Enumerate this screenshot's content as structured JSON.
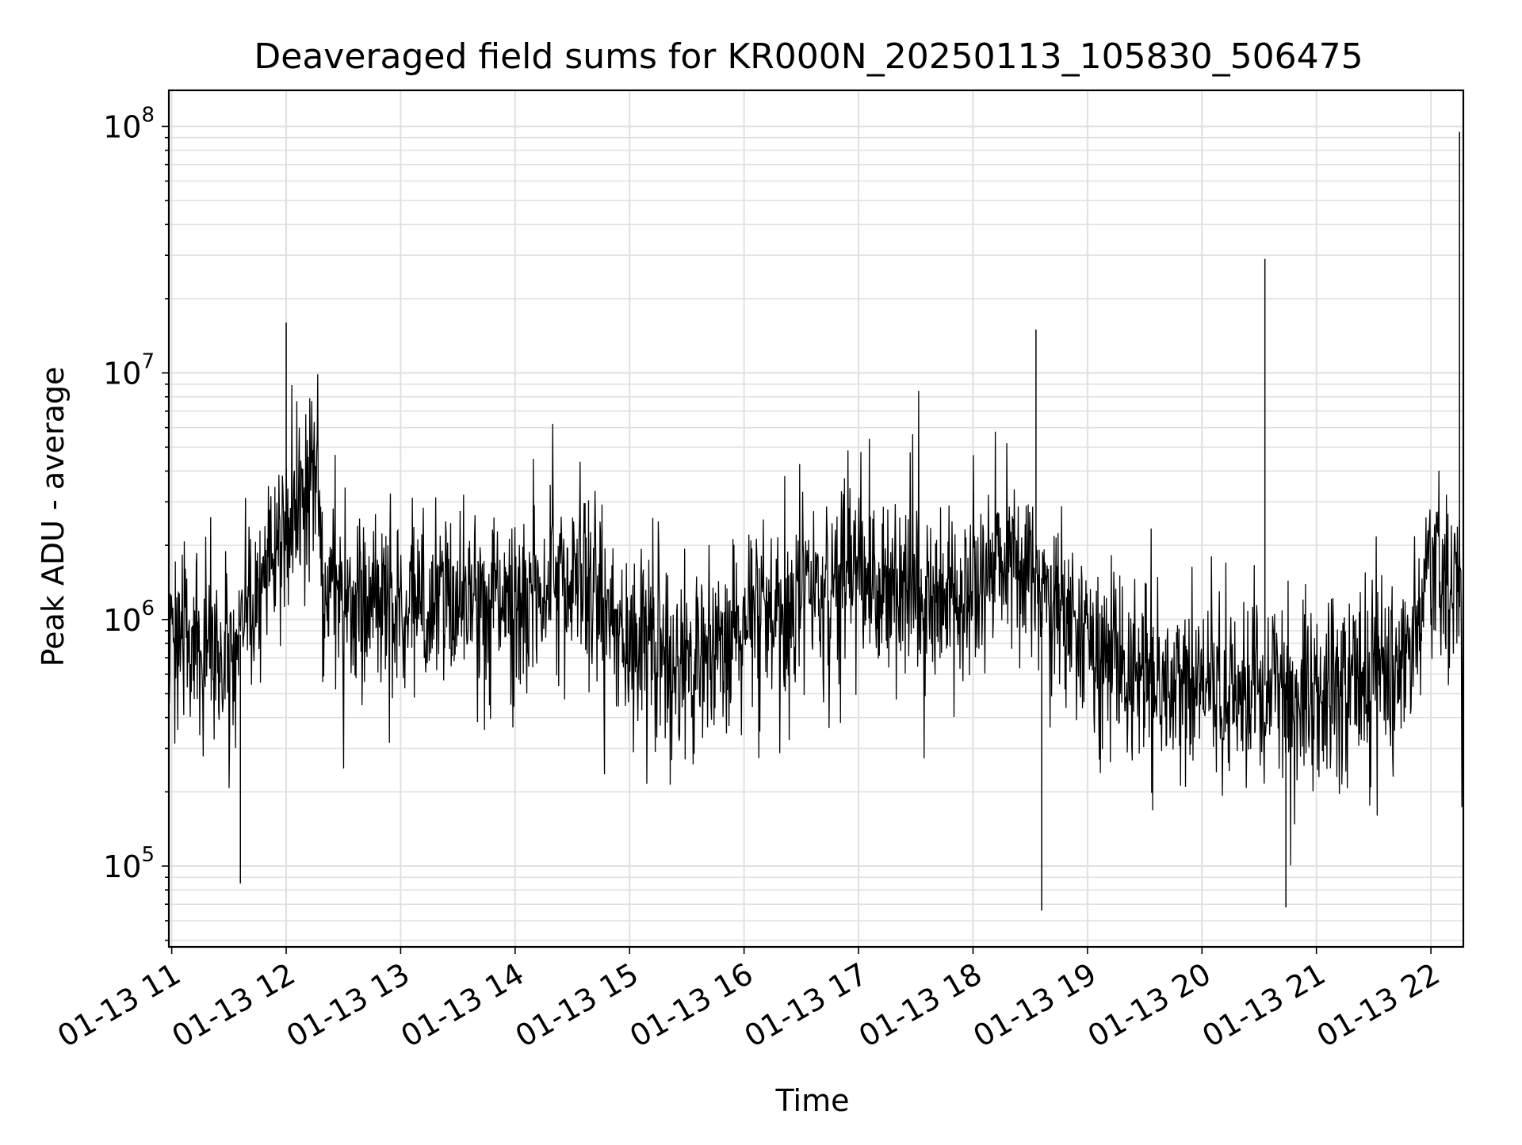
{
  "chart_data": {
    "type": "line",
    "title": "Deaveraged field sums for KR000N_20250113_105830_506475",
    "xlabel": "Time",
    "ylabel": "Peak ADU - average",
    "yscale": "log",
    "ylim": [
      47000,
      140000000
    ],
    "xlim": [
      "2025-01-13 10:58:30",
      "2025-01-13 22:17:00"
    ],
    "grid": true,
    "line_color": "#000000",
    "grid_color": "#e0e0e0",
    "x_ticks": [
      {
        "time": "2025-01-13 11:00",
        "label": "01-13 11"
      },
      {
        "time": "2025-01-13 12:00",
        "label": "01-13 12"
      },
      {
        "time": "2025-01-13 13:00",
        "label": "01-13 13"
      },
      {
        "time": "2025-01-13 14:00",
        "label": "01-13 14"
      },
      {
        "time": "2025-01-13 15:00",
        "label": "01-13 15"
      },
      {
        "time": "2025-01-13 16:00",
        "label": "01-13 16"
      },
      {
        "time": "2025-01-13 17:00",
        "label": "01-13 17"
      },
      {
        "time": "2025-01-13 18:00",
        "label": "01-13 18"
      },
      {
        "time": "2025-01-13 19:00",
        "label": "01-13 19"
      },
      {
        "time": "2025-01-13 20:00",
        "label": "01-13 20"
      },
      {
        "time": "2025-01-13 21:00",
        "label": "01-13 21"
      },
      {
        "time": "2025-01-13 22:00",
        "label": "01-13 22"
      }
    ],
    "y_ticks": [
      {
        "value": 100000,
        "base": "10",
        "exp": "5"
      },
      {
        "value": 1000000,
        "base": "10",
        "exp": "6"
      },
      {
        "value": 10000000,
        "base": "10",
        "exp": "7"
      },
      {
        "value": 100000000,
        "base": "10",
        "exp": "8"
      }
    ],
    "series": [
      {
        "values_note": "approximate median envelope of a dense noisy trace",
        "x": [
          "2025-01-13 10:58",
          "2025-01-13 11:10",
          "2025-01-13 11:20",
          "2025-01-13 11:30",
          "2025-01-13 11:40",
          "2025-01-13 11:50",
          "2025-01-13 12:00",
          "2025-01-13 12:05",
          "2025-01-13 12:10",
          "2025-01-13 12:15",
          "2025-01-13 12:20",
          "2025-01-13 12:30",
          "2025-01-13 12:45",
          "2025-01-13 13:00",
          "2025-01-13 13:15",
          "2025-01-13 13:30",
          "2025-01-13 13:45",
          "2025-01-13 14:00",
          "2025-01-13 14:15",
          "2025-01-13 14:30",
          "2025-01-13 14:45",
          "2025-01-13 15:00",
          "2025-01-13 15:15",
          "2025-01-13 15:30",
          "2025-01-13 15:45",
          "2025-01-13 16:00",
          "2025-01-13 16:15",
          "2025-01-13 16:30",
          "2025-01-13 16:45",
          "2025-01-13 17:00",
          "2025-01-13 17:15",
          "2025-01-13 17:30",
          "2025-01-13 17:45",
          "2025-01-13 18:00",
          "2025-01-13 18:15",
          "2025-01-13 18:30",
          "2025-01-13 18:45",
          "2025-01-13 19:00",
          "2025-01-13 19:15",
          "2025-01-13 19:30",
          "2025-01-13 19:45",
          "2025-01-13 20:00",
          "2025-01-13 20:15",
          "2025-01-13 20:30",
          "2025-01-13 20:45",
          "2025-01-13 21:00",
          "2025-01-13 21:15",
          "2025-01-13 21:30",
          "2025-01-13 21:45",
          "2025-01-13 22:00",
          "2025-01-13 22:10",
          "2025-01-13 22:17"
        ],
        "y": [
          900000,
          800000,
          750000,
          700000,
          1000000,
          1500000,
          2000000,
          2500000,
          3500000,
          6000000,
          1200000,
          1300000,
          1200000,
          1100000,
          1200000,
          1300000,
          1100000,
          1000000,
          1400000,
          1500000,
          1200000,
          900000,
          700000,
          600000,
          700000,
          900000,
          1000000,
          1200000,
          1300000,
          1500000,
          1400000,
          1300000,
          1200000,
          1400000,
          1500000,
          1600000,
          1300000,
          700000,
          600000,
          600000,
          600000,
          500000,
          500000,
          550000,
          500000,
          500000,
          550000,
          600000,
          600000,
          1800000,
          1500000,
          1000000
        ]
      }
    ],
    "spikes": [
      {
        "x": "2025-01-13 12:00",
        "y": 16000000
      },
      {
        "x": "2025-01-13 18:33",
        "y": 15000000
      },
      {
        "x": "2025-01-13 18:36",
        "y": 66000
      },
      {
        "x": "2025-01-13 20:33",
        "y": 29000000
      },
      {
        "x": "2025-01-13 20:44",
        "y": 68000
      },
      {
        "x": "2025-01-13 11:36",
        "y": 85000
      },
      {
        "x": "2025-01-13 22:15",
        "y": 95000000
      }
    ]
  }
}
